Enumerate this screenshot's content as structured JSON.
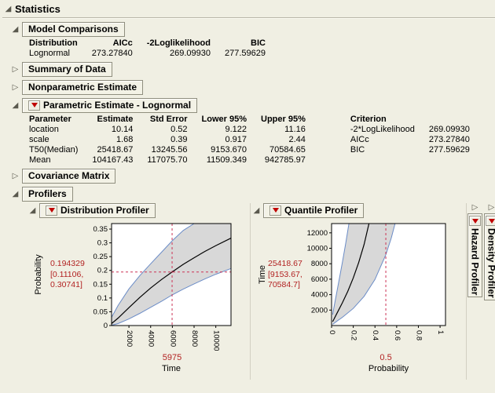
{
  "title": "Statistics",
  "icons": {
    "expanded": "◢",
    "collapsed": "▷"
  },
  "colors": {
    "background": "#F0EFE3",
    "band_fill": "#D8D8D8",
    "band_edge": "#6B8CC7",
    "curve": "#000000",
    "crosshair_red": "#CC3355",
    "value_red": "#B22222",
    "triangle_red": "#C00000"
  },
  "sections": {
    "model_comparisons": {
      "title": "Model Comparisons",
      "table": {
        "headers": [
          "Distribution",
          "AICc",
          "-2Loglikelihood",
          "BIC"
        ],
        "rows": [
          [
            "Lognormal",
            "273.27840",
            "269.09930",
            "277.59629"
          ]
        ]
      }
    },
    "summary": {
      "title": "Summary of Data"
    },
    "nonparametric": {
      "title": "Nonparametric Estimate"
    },
    "parametric": {
      "title": "Parametric Estimate - Lognormal",
      "table": {
        "headers": [
          "Parameter",
          "Estimate",
          "Std Error",
          "Lower 95%",
          "Upper 95%",
          "Criterion",
          ""
        ],
        "rows": [
          [
            "location",
            "10.14",
            "0.52",
            "9.122",
            "11.16",
            "-2*LogLikelihood",
            "269.09930"
          ],
          [
            "scale",
            "1.68",
            "0.39",
            "0.917",
            "2.44",
            "AICc",
            "273.27840"
          ],
          [
            "T50(Median)",
            "25418.67",
            "13245.56",
            "9153.670",
            "70584.65",
            "BIC",
            "277.59629"
          ],
          [
            "Mean",
            "104167.43",
            "117075.70",
            "11509.349",
            "942785.97",
            "",
            ""
          ]
        ]
      }
    },
    "covariance": {
      "title": "Covariance Matrix"
    },
    "profilers": {
      "title": "Profilers",
      "distribution": {
        "title": "Distribution Profiler"
      },
      "quantile": {
        "title": "Quantile Profiler"
      },
      "hazard": {
        "title": "Hazard Profiler"
      },
      "density": {
        "title": "Density Profiler"
      }
    }
  },
  "chart_data": [
    {
      "type": "line",
      "name": "distribution-profiler",
      "title": "Distribution Profiler",
      "xlabel": "Time",
      "ylabel": "Probability",
      "xlim": [
        400,
        11400
      ],
      "ylim": [
        0,
        0.37
      ],
      "xticks": [
        2000,
        4000,
        6000,
        8000,
        10000
      ],
      "yticks": [
        0,
        0.05,
        0.1,
        0.15,
        0.2,
        0.25,
        0.3,
        0.35
      ],
      "legend": "none",
      "current": {
        "x": 5975,
        "y": 0.194329,
        "x_label": "5975",
        "y_label": "0.194329",
        "ci": [
          "[0.11106,",
          "0.30741]"
        ],
        "h_line": true
      },
      "series": {
        "mid": [
          [
            400,
            0.007
          ],
          [
            1000,
            0.027
          ],
          [
            2000,
            0.065
          ],
          [
            3000,
            0.102
          ],
          [
            4000,
            0.136
          ],
          [
            5000,
            0.167
          ],
          [
            5975,
            0.194
          ],
          [
            7000,
            0.222
          ],
          [
            8000,
            0.246
          ],
          [
            9000,
            0.269
          ],
          [
            10000,
            0.29
          ],
          [
            11400,
            0.317
          ]
        ],
        "lower": [
          [
            400,
            0.001
          ],
          [
            1000,
            0.007
          ],
          [
            2000,
            0.024
          ],
          [
            3000,
            0.044
          ],
          [
            4000,
            0.066
          ],
          [
            5000,
            0.088
          ],
          [
            5975,
            0.111
          ],
          [
            7000,
            0.132
          ],
          [
            8000,
            0.151
          ],
          [
            9000,
            0.169
          ],
          [
            10000,
            0.186
          ],
          [
            11400,
            0.207
          ]
        ],
        "upper": [
          [
            400,
            0.03
          ],
          [
            1000,
            0.073
          ],
          [
            2000,
            0.133
          ],
          [
            3000,
            0.181
          ],
          [
            4000,
            0.224
          ],
          [
            5000,
            0.266
          ],
          [
            5975,
            0.307
          ],
          [
            7000,
            0.345
          ],
          [
            8000,
            0.37
          ],
          [
            11400,
            0.37
          ]
        ]
      }
    },
    {
      "type": "line",
      "name": "quantile-profiler",
      "title": "Quantile Profiler",
      "xlabel": "Probability",
      "ylabel": "Time",
      "xlim": [
        0,
        1.05
      ],
      "ylim": [
        0,
        13200
      ],
      "xticks": [
        0,
        0.2,
        0.4,
        0.6,
        0.8,
        1
      ],
      "yticks": [
        2000,
        4000,
        6000,
        8000,
        10000,
        12000
      ],
      "legend": "none",
      "current": {
        "x": 0.5,
        "y": 25418.67,
        "x_label": "0.5",
        "y_label": "25418.67",
        "ci": [
          "[9153.67,",
          "70584.7]"
        ],
        "h_line": false
      },
      "series": {
        "mid": [
          [
            0.01,
            509
          ],
          [
            0.05,
            1598
          ],
          [
            0.1,
            2950
          ],
          [
            0.15,
            4444
          ],
          [
            0.2,
            6160
          ],
          [
            0.25,
            8150
          ],
          [
            0.3,
            10500
          ],
          [
            0.345,
            13200
          ]
        ],
        "lower": [
          [
            0.01,
            150
          ],
          [
            0.05,
            575
          ],
          [
            0.1,
            1062
          ],
          [
            0.2,
            2218
          ],
          [
            0.3,
            3780
          ],
          [
            0.4,
            5958
          ],
          [
            0.5,
            9154
          ],
          [
            0.55,
            11330
          ],
          [
            0.585,
            13200
          ]
        ],
        "upper": [
          [
            0.01,
            1415
          ],
          [
            0.02,
            2238
          ],
          [
            0.05,
            4443
          ],
          [
            0.08,
            6658
          ],
          [
            0.1,
            8200
          ],
          [
            0.13,
            10640
          ],
          [
            0.16,
            13200
          ]
        ]
      }
    }
  ]
}
